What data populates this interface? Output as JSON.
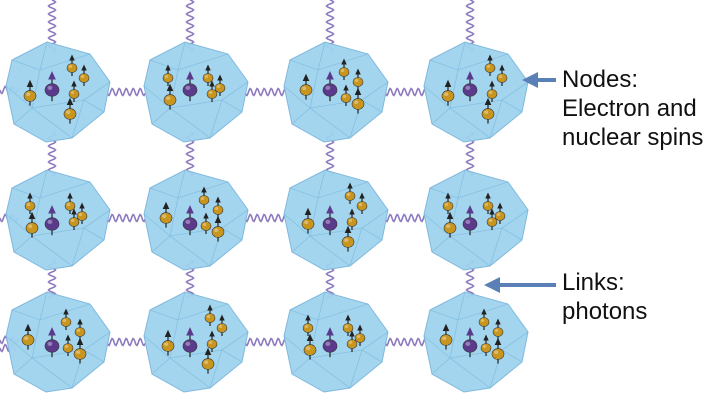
{
  "labels": {
    "nodes": {
      "line1": "Nodes:",
      "line2": "Electron and",
      "line3": "nuclear spins"
    },
    "links": {
      "line1": "Links:",
      "line2": "photons"
    }
  },
  "grid": {
    "rows": 3,
    "columns": 4
  },
  "colors": {
    "diamond_fill": "#9fd3ef",
    "diamond_edge": "#7ab6dc",
    "electron_spin": "#5b3a8c",
    "nuclear_spin": "#c8951f",
    "photon": "#8e7bbf",
    "pointer_arrow": "#5b7fb7"
  },
  "icons": {
    "node": "diamond-crystal-icon",
    "electron": "electron-spin-icon",
    "nucleus": "nuclear-spin-icon",
    "link": "photon-wave-icon"
  }
}
